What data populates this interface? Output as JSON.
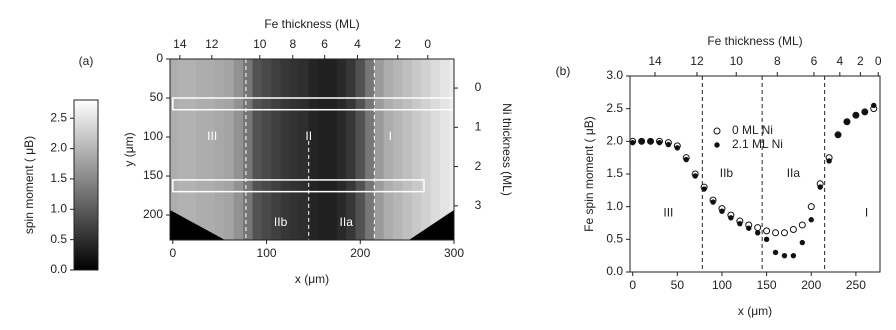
{
  "chart_data": [
    {
      "type": "heatmap",
      "panel": "(a)",
      "title": "Fe thickness  (ML)",
      "xlabel": "x  (μm)",
      "ylabel": "y  (μm)",
      "y2label": "Ni thickness  (ML)",
      "colorbar_label": "spin moment  ( μB)",
      "xlim": [
        -3,
        300
      ],
      "xticks": [
        0,
        100,
        200,
        300
      ],
      "ylim": [
        0,
        232
      ],
      "yticks": [
        0,
        50,
        100,
        150,
        200
      ],
      "y2lim": [
        -0.74,
        3.87
      ],
      "y2ticks": [
        0,
        1,
        2,
        3
      ],
      "x2ticks": [
        14,
        12,
        10,
        8,
        6,
        4,
        2,
        0
      ],
      "x2tick_x": [
        7.5,
        41.6,
        92.8,
        128,
        162,
        197,
        240,
        272
      ],
      "clim": [
        0,
        2.8
      ],
      "cticks": [
        {
          "value": 0,
          "label": "0.0"
        },
        0.5,
        {
          "value": 1,
          "label": "1.0"
        },
        1.5,
        {
          "value": 2,
          "label": "2.0"
        },
        2.5
      ],
      "x": [
        0,
        10,
        20,
        30,
        40,
        50,
        60,
        70,
        80,
        90,
        100,
        110,
        120,
        130,
        140,
        150,
        160,
        170,
        180,
        190,
        200,
        210,
        220,
        230,
        240,
        250,
        260,
        270,
        280,
        290,
        300
      ],
      "values": [
        1.9,
        1.95,
        1.95,
        1.9,
        1.9,
        1.85,
        1.8,
        1.6,
        1.3,
        0.9,
        0.8,
        0.7,
        0.6,
        0.55,
        0.5,
        0.4,
        0.35,
        0.35,
        0.45,
        0.6,
        0.9,
        1.3,
        1.7,
        1.9,
        2.0,
        2.1,
        2.2,
        2.3,
        2.4,
        2.5,
        2.6
      ],
      "boundaries": [
        78,
        145,
        215
      ],
      "boundary_from_y": [
        0,
        105,
        0
      ],
      "rois": [
        [
          0,
          300,
          50,
          65
        ],
        [
          0,
          268,
          155,
          170
        ]
      ],
      "annotations": [
        {
          "text": "III",
          "x": 42,
          "y": 100
        },
        {
          "text": "II",
          "x": 145,
          "y": 100
        },
        {
          "text": "I",
          "x": 232,
          "y": 100
        },
        {
          "text": "IIb",
          "x": 115,
          "y": 210
        },
        {
          "text": "IIa",
          "x": 185,
          "y": 210
        }
      ]
    },
    {
      "type": "scatter",
      "panel": "(b)",
      "title": "Fe thickness  (ML)",
      "xlabel": "x  (μm)",
      "ylabel": "Fe spin moment  ( μB)",
      "xlim": [
        -3,
        277
      ],
      "xticks": [
        0,
        50,
        100,
        150,
        200,
        250
      ],
      "ylim": [
        0,
        3
      ],
      "yticks": [
        {
          "value": 0,
          "label": "0.0"
        },
        0.5,
        {
          "value": 1,
          "label": "1.0"
        },
        1.5,
        {
          "value": 2,
          "label": "2.0"
        },
        2.5,
        {
          "value": 3,
          "label": "3.0"
        }
      ],
      "x2ticks": [
        14,
        12,
        10,
        8,
        6,
        4,
        2,
        0
      ],
      "x2tick_x": [
        25,
        72,
        116,
        162,
        203,
        232,
        255,
        275
      ],
      "x": [
        0,
        10,
        20,
        30,
        40,
        50,
        60,
        70,
        80,
        90,
        100,
        110,
        120,
        130,
        140,
        150,
        160,
        170,
        180,
        190,
        200,
        210,
        220,
        230,
        240,
        250,
        260,
        270
      ],
      "series": [
        {
          "name": "0 ML Ni",
          "marker": "open",
          "color": "#111",
          "values": [
            2.0,
            2.0,
            2.0,
            2.0,
            1.98,
            1.93,
            1.75,
            1.5,
            1.3,
            1.1,
            0.97,
            0.87,
            0.78,
            0.72,
            0.68,
            0.63,
            0.6,
            0.6,
            0.65,
            0.72,
            1.0,
            1.35,
            1.75,
            2.1,
            2.3,
            2.4,
            2.45,
            2.5
          ]
        },
        {
          "name": "2.1 ML Ni",
          "marker": "filled",
          "color": "#111",
          "values": [
            1.98,
            2.0,
            2.0,
            1.98,
            1.95,
            1.9,
            1.72,
            1.47,
            1.27,
            1.07,
            0.93,
            0.83,
            0.74,
            0.67,
            0.6,
            0.5,
            0.3,
            0.25,
            0.25,
            0.45,
            0.8,
            1.3,
            1.7,
            2.1,
            2.3,
            2.4,
            2.45,
            2.55
          ]
        }
      ],
      "boundaries": [
        78,
        145,
        215
      ],
      "boundary_from_y": [
        0,
        0,
        0
      ],
      "annotations": [
        {
          "text": "III",
          "x": 40,
          "y": 0.9
        },
        {
          "text": "IIb",
          "x": 105,
          "y": 1.5
        },
        {
          "text": "IIa",
          "x": 180,
          "y": 1.5
        },
        {
          "text": "I",
          "x": 262,
          "y": 0.9
        }
      ]
    }
  ]
}
